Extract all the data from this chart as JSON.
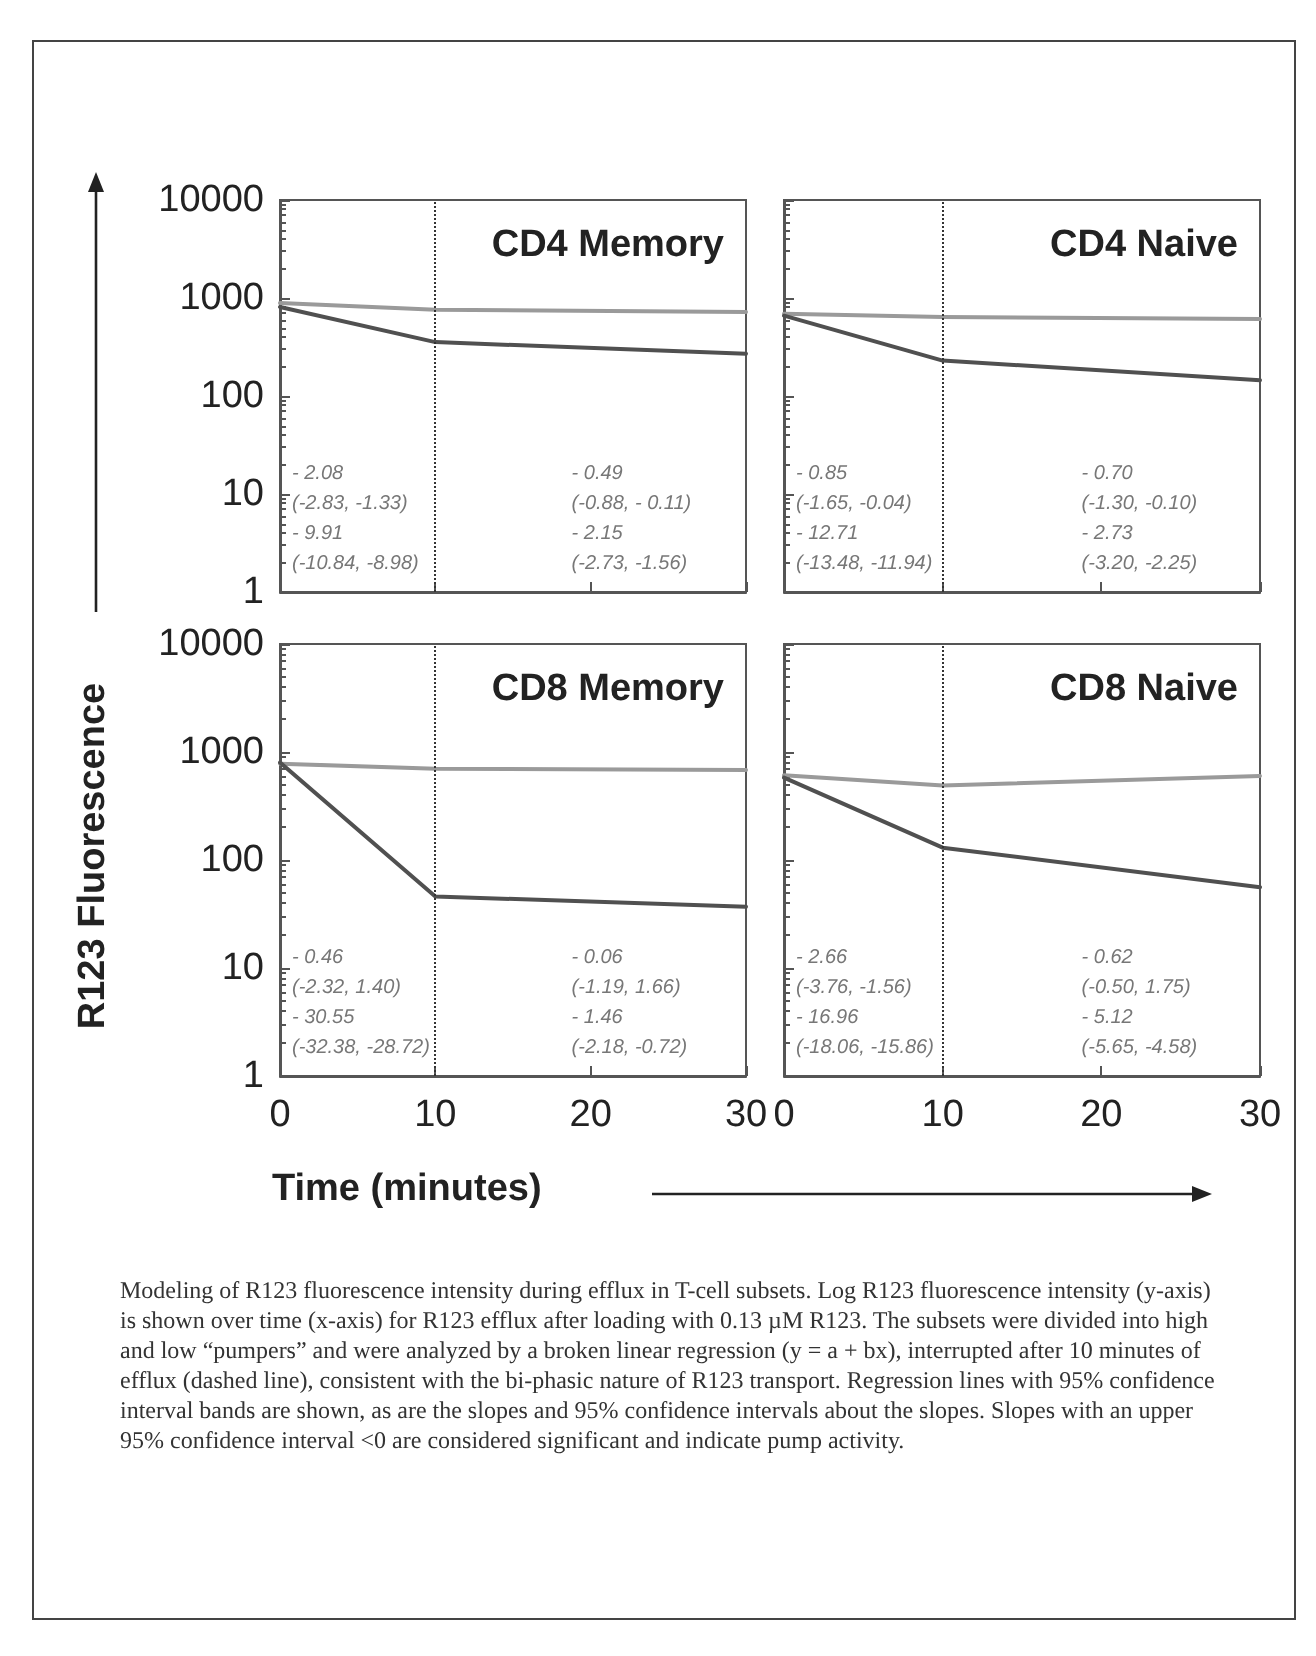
{
  "chart_data": [
    {
      "type": "line",
      "title": "CD4 Memory",
      "x": [
        0,
        10,
        30
      ],
      "xlim": [
        0,
        30
      ],
      "xticks": [
        0,
        10,
        20,
        30
      ],
      "ylim": [
        1,
        10000
      ],
      "yticks": [
        1,
        10,
        100,
        1000,
        10000
      ],
      "log": "y",
      "marker": "none",
      "tick_labels": "y",
      "series": [
        {
          "color": "#9a9a9a",
          "values": [
            890,
            760,
            720
          ]
        },
        {
          "color": "#505050",
          "values": [
            810,
            355,
            270
          ]
        }
      ],
      "ref_lines": [
        {
          "axis": "x",
          "value": 10,
          "color": "#333333",
          "line_style": "dotted"
        }
      ],
      "annotations": [
        "- 2.08",
        "(-2.83, -1.33)",
        "- 9.91",
        "(-10.84, -8.98)",
        "- 0.49",
        "(-0.88, - 0.11)",
        "- 2.15",
        "(-2.73, -1.56)"
      ]
    },
    {
      "type": "line",
      "title": "CD4 Naive",
      "x": [
        0,
        10,
        30
      ],
      "xlim": [
        0,
        30
      ],
      "xticks": [
        0,
        10,
        20,
        30
      ],
      "ylim": [
        1,
        10000
      ],
      "yticks": [
        1,
        10,
        100,
        1000,
        10000
      ],
      "log": "y",
      "marker": "none",
      "tick_labels": false,
      "series": [
        {
          "color": "#9a9a9a",
          "values": [
            690,
            640,
            610
          ]
        },
        {
          "color": "#505050",
          "values": [
            660,
            230,
            145
          ]
        }
      ],
      "ref_lines": [
        {
          "axis": "x",
          "value": 10,
          "color": "#333333",
          "line_style": "dotted"
        }
      ],
      "annotations": [
        "- 0.85",
        "(-1.65, -0.04)",
        "- 12.71",
        "(-13.48, -11.94)",
        "- 0.70",
        "(-1.30, -0.10)",
        "- 2.73",
        "(-3.20, -2.25)"
      ]
    },
    {
      "type": "line",
      "title": "CD8 Memory",
      "xlabel": "Time (minutes)",
      "ylabel": "R123 Fluorescence",
      "x": [
        0,
        10,
        30
      ],
      "xlim": [
        0,
        30
      ],
      "xticks": [
        0,
        10,
        20,
        30
      ],
      "ylim": [
        1,
        10000
      ],
      "yticks": [
        1,
        10,
        100,
        1000,
        10000
      ],
      "log": "y",
      "marker": "none",
      "series": [
        {
          "color": "#9a9a9a",
          "values": [
            780,
            700,
            680
          ]
        },
        {
          "color": "#505050",
          "values": [
            800,
            46,
            37
          ]
        }
      ],
      "ref_lines": [
        {
          "axis": "x",
          "value": 10,
          "color": "#333333",
          "line_style": "dotted"
        }
      ],
      "annotations": [
        "- 0.46",
        "(-2.32, 1.40)",
        "- 30.55",
        "(-32.38, -28.72)",
        "- 0.06",
        "(-1.19, 1.66)",
        "- 1.46",
        "(-2.18, -0.72)"
      ]
    },
    {
      "type": "line",
      "title": "CD8 Naive",
      "x": [
        0,
        10,
        30
      ],
      "xlim": [
        0,
        30
      ],
      "xticks": [
        0,
        10,
        20,
        30
      ],
      "ylim": [
        1,
        10000
      ],
      "yticks": [
        1,
        10,
        100,
        1000,
        10000
      ],
      "log": "y",
      "marker": "none",
      "tick_labels": "x",
      "series": [
        {
          "color": "#9a9a9a",
          "values": [
            610,
            490,
            600
          ]
        },
        {
          "color": "#505050",
          "values": [
            580,
            130,
            56
          ]
        }
      ],
      "ref_lines": [
        {
          "axis": "x",
          "value": 10,
          "color": "#333333",
          "line_style": "dotted"
        }
      ],
      "annotations": [
        "- 2.66",
        "(-3.76, -1.56)",
        "- 16.96",
        "(-18.06, -15.86)",
        "- 0.62",
        "(-0.50, 1.75)",
        "- 5.12",
        "(-5.65, -4.58)",
        "Modeling of R123 fluorescence intensity during efflux in T-cell subsets. Log R123 fluorescence intensity (y-axis) is shown over time (x-axis) for R123 efflux after loading with 0.13 µM R123. The subsets were divided into high and low “pumpers” and were analyzed by a broken linear regression (y = a + bx), interrupted after 10 minutes of efflux (dashed line), consistent with the bi-phasic nature of R123 transport. Regression lines with 95% confidence interval bands are shown, as are the slopes and 95% confidence intervals about the slopes. Slopes with an upper 95% confidence interval <0 are considered significant and indicate pump activity."
      ]
    }
  ]
}
